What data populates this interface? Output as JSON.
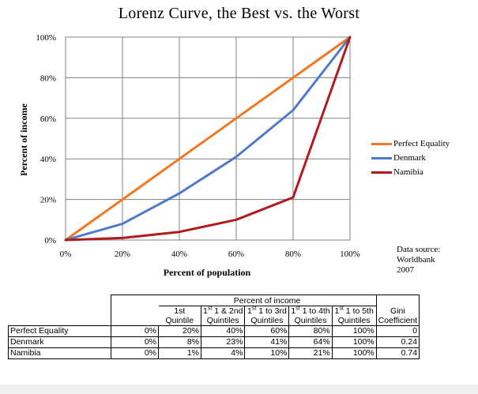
{
  "chart_data": {
    "type": "line",
    "title": "Lorenz Curve, the Best vs. the Worst",
    "xlabel": "Percent of population",
    "ylabel": "Percent of income",
    "x": [
      0,
      20,
      40,
      60,
      80,
      100
    ],
    "xlim": [
      0,
      100
    ],
    "ylim": [
      0,
      100
    ],
    "xticks": [
      "0%",
      "20%",
      "40%",
      "60%",
      "80%",
      "100%"
    ],
    "yticks": [
      "0%",
      "20%",
      "40%",
      "60%",
      "80%",
      "100%"
    ],
    "grid": true,
    "legend_position": "right",
    "series": [
      {
        "name": "Perfect Equality",
        "color": "#f07820",
        "values": [
          0,
          20,
          40,
          60,
          80,
          100
        ]
      },
      {
        "name": "Denmark",
        "color": "#4f7ac8",
        "values": [
          0,
          8,
          23,
          41,
          64,
          100
        ]
      },
      {
        "name": "Namibia",
        "color": "#b01c1c",
        "values": [
          0,
          1,
          4,
          10,
          21,
          100
        ]
      }
    ]
  },
  "source": {
    "line1": "Data source:",
    "line2": "Worldbank",
    "line3": "2007"
  },
  "table": {
    "group_header": "Percent of income",
    "gini_header_1": "Gini",
    "gini_header_2": "Coefficient",
    "columns": [
      {
        "sup": "",
        "line1": "1st",
        "line2": "Quintile"
      },
      {
        "sup": "st",
        "line1": "1 & 2nd",
        "line2": "Quintiles"
      },
      {
        "sup": "st",
        "line1": "1 to 3rd",
        "line2": "Quintiles"
      },
      {
        "sup": "st",
        "line1": "1 to 4th",
        "line2": "Quintiles"
      },
      {
        "sup": "st",
        "line1": "1 to 5th",
        "line2": "Quintiles"
      }
    ],
    "rows": [
      {
        "label": "Perfect Equality",
        "zero": "0%",
        "values": [
          "20%",
          "40%",
          "60%",
          "80%",
          "100%"
        ],
        "gini": "0"
      },
      {
        "label": "Denmark",
        "zero": "0%",
        "values": [
          "8%",
          "23%",
          "41%",
          "64%",
          "100%"
        ],
        "gini": "0.24"
      },
      {
        "label": "Namibia",
        "zero": "0%",
        "values": [
          "1%",
          "4%",
          "10%",
          "21%",
          "100%"
        ],
        "gini": "0.74"
      }
    ]
  }
}
